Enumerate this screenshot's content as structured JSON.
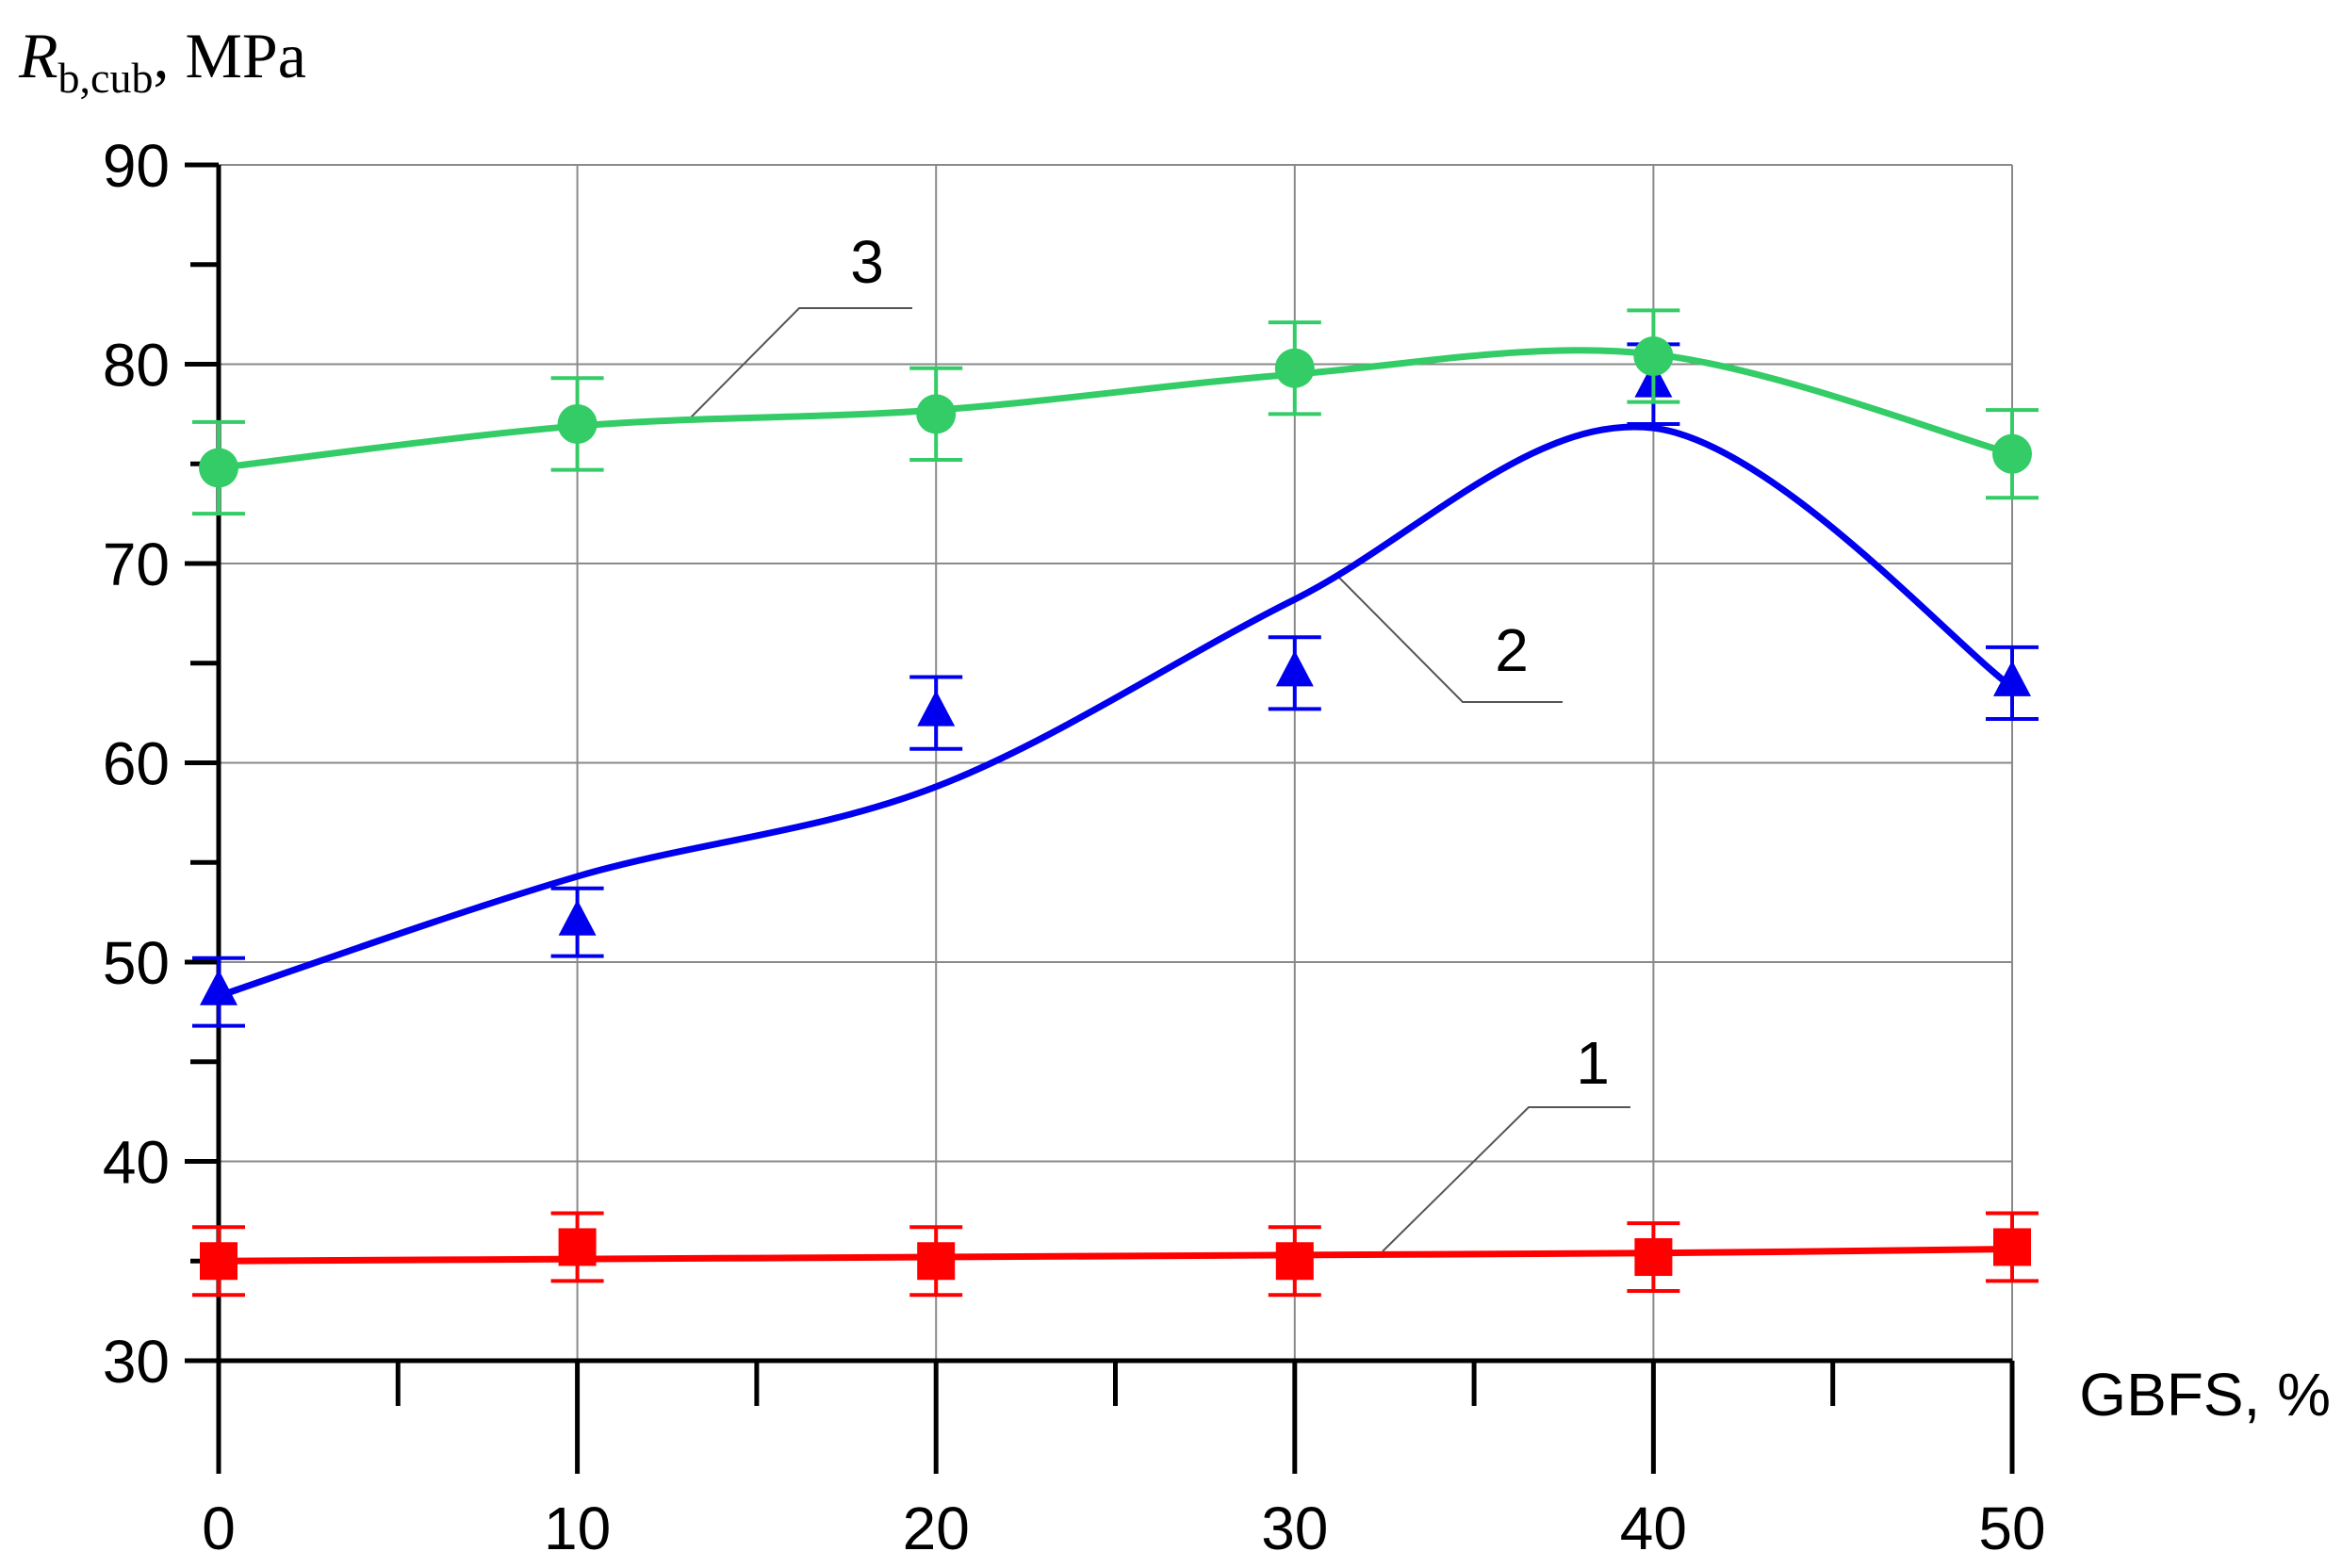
{
  "chart_data": {
    "type": "line",
    "ylabel": {
      "symbol": "R",
      "subscript": "b,cub",
      "unit": ", MPa"
    },
    "xlabel": "GBFS, %",
    "xlim": [
      0,
      50
    ],
    "ylim": [
      30,
      90
    ],
    "x_ticks": [
      0,
      10,
      20,
      30,
      40,
      50
    ],
    "y_ticks": [
      30,
      40,
      50,
      60,
      70,
      80,
      90
    ],
    "x_minor_step": 5,
    "y_minor_step": 5,
    "grid": true,
    "series": [
      {
        "label": "1",
        "color": "#ff0000",
        "marker": "square",
        "x": [
          0,
          10,
          20,
          30,
          40,
          50
        ],
        "y": [
          35.0,
          35.7,
          35.0,
          35.0,
          35.2,
          35.7
        ],
        "err": [
          1.7,
          1.7,
          1.7,
          1.7,
          1.7,
          1.7
        ],
        "curve_y": [
          35.0,
          35.1,
          35.2,
          35.3,
          35.4,
          35.6
        ]
      },
      {
        "label": "2",
        "color": "#0000ee",
        "marker": "triangle",
        "x": [
          0,
          10,
          20,
          30,
          40,
          50
        ],
        "y": [
          48.5,
          52.0,
          62.5,
          64.5,
          79.0,
          64.0
        ],
        "err": [
          1.7,
          1.7,
          1.8,
          1.8,
          2.0,
          1.8
        ],
        "curve_y": [
          48.3,
          54.3,
          58.8,
          68.2,
          76.8,
          63.8
        ]
      },
      {
        "label": "3",
        "color": "#33cc66",
        "marker": "circle",
        "x": [
          0,
          10,
          20,
          30,
          40,
          50
        ],
        "y": [
          74.8,
          77.0,
          77.5,
          79.8,
          80.4,
          75.5
        ],
        "err": [
          2.3,
          2.3,
          2.3,
          2.3,
          2.3,
          2.2
        ],
        "curve_y": [
          74.8,
          76.9,
          77.7,
          79.5,
          80.5,
          75.5
        ]
      }
    ]
  }
}
